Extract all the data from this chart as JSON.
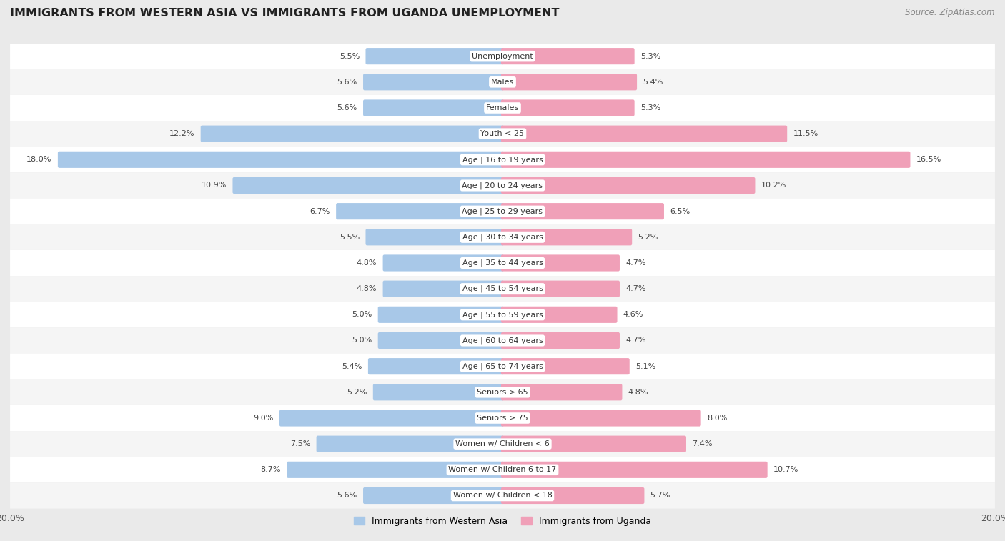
{
  "title": "IMMIGRANTS FROM WESTERN ASIA VS IMMIGRANTS FROM UGANDA UNEMPLOYMENT",
  "source": "Source: ZipAtlas.com",
  "categories": [
    "Unemployment",
    "Males",
    "Females",
    "Youth < 25",
    "Age | 16 to 19 years",
    "Age | 20 to 24 years",
    "Age | 25 to 29 years",
    "Age | 30 to 34 years",
    "Age | 35 to 44 years",
    "Age | 45 to 54 years",
    "Age | 55 to 59 years",
    "Age | 60 to 64 years",
    "Age | 65 to 74 years",
    "Seniors > 65",
    "Seniors > 75",
    "Women w/ Children < 6",
    "Women w/ Children 6 to 17",
    "Women w/ Children < 18"
  ],
  "western_asia": [
    5.5,
    5.6,
    5.6,
    12.2,
    18.0,
    10.9,
    6.7,
    5.5,
    4.8,
    4.8,
    5.0,
    5.0,
    5.4,
    5.2,
    9.0,
    7.5,
    8.7,
    5.6
  ],
  "uganda": [
    5.3,
    5.4,
    5.3,
    11.5,
    16.5,
    10.2,
    6.5,
    5.2,
    4.7,
    4.7,
    4.6,
    4.7,
    5.1,
    4.8,
    8.0,
    7.4,
    10.7,
    5.7
  ],
  "color_western_asia": "#a8c8e8",
  "color_uganda": "#f0a0b8",
  "background_color": "#eaeaea",
  "row_bg_odd": "#f5f5f5",
  "row_bg_even": "#ffffff",
  "xlim": 20.0,
  "legend_label_western_asia": "Immigrants from Western Asia",
  "legend_label_uganda": "Immigrants from Uganda"
}
